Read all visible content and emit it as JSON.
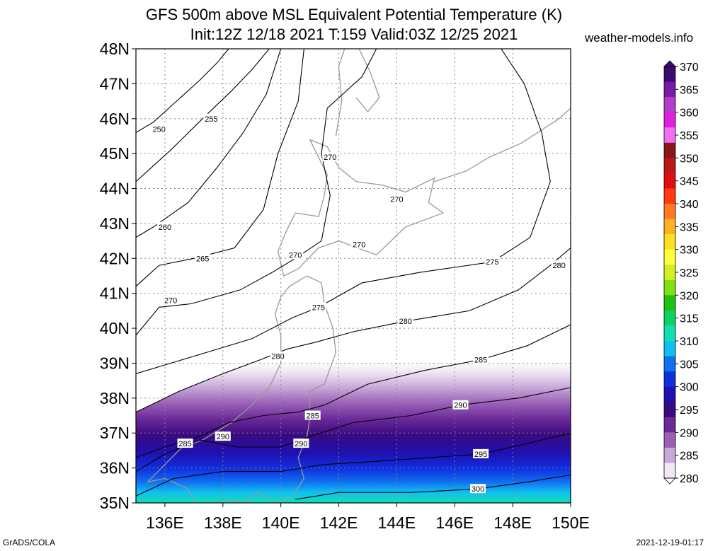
{
  "title_line1": "GFS 500m above MSL Equivalent Potential Temperature (K)",
  "title_line2": "Init:12Z 12/18 2021 T:159 Valid:03Z 12/25 2021",
  "source": "weather-models.info",
  "footer_left": "GrADS/COLA",
  "footer_right": "2021-12-19-01:17",
  "lat_labels": [
    "48N",
    "47N",
    "46N",
    "45N",
    "44N",
    "43N",
    "42N",
    "41N",
    "40N",
    "39N",
    "38N",
    "37N",
    "36N",
    "35N"
  ],
  "lon_labels": [
    "136E",
    "138E",
    "140E",
    "142E",
    "144E",
    "146E",
    "148E",
    "150E"
  ],
  "colorbar": {
    "labels": [
      "370",
      "365",
      "360",
      "355",
      "350",
      "345",
      "340",
      "335",
      "330",
      "325",
      "320",
      "315",
      "310",
      "305",
      "300",
      "295",
      "290",
      "285",
      "280"
    ],
    "colors": [
      "#3d0a6e",
      "#7a1aa8",
      "#b23dc8",
      "#e020e0",
      "#f070f0",
      "#8a1818",
      "#b81a1a",
      "#e01010",
      "#ff3a10",
      "#ff7a20",
      "#ffb020",
      "#ffe020",
      "#ffff40",
      "#d0f020",
      "#80e010",
      "#20c010",
      "#10d060",
      "#10e0b0",
      "#10c0f0",
      "#1070f0",
      "#1030e0",
      "#2010b0",
      "#3a0a80",
      "#6a2a98",
      "#9a60b8",
      "#c8a8d8",
      "#f0e8f4"
    ]
  },
  "contour_labels": [
    {
      "text": "250",
      "lon": 135.8,
      "lat": 45.7
    },
    {
      "text": "255",
      "lon": 137.6,
      "lat": 46.0
    },
    {
      "text": "270",
      "lon": 141.7,
      "lat": 44.9
    },
    {
      "text": "270",
      "lon": 144.0,
      "lat": 43.7
    },
    {
      "text": "260",
      "lon": 136.0,
      "lat": 42.9
    },
    {
      "text": "270",
      "lon": 140.5,
      "lat": 42.1
    },
    {
      "text": "270",
      "lon": 142.7,
      "lat": 42.4
    },
    {
      "text": "265",
      "lon": 137.3,
      "lat": 42.0
    },
    {
      "text": "275",
      "lon": 147.3,
      "lat": 41.9
    },
    {
      "text": "280",
      "lon": 149.6,
      "lat": 41.8
    },
    {
      "text": "270",
      "lon": 136.2,
      "lat": 40.8
    },
    {
      "text": "275",
      "lon": 141.3,
      "lat": 40.6
    },
    {
      "text": "280",
      "lon": 144.3,
      "lat": 40.2
    },
    {
      "text": "280",
      "lon": 139.9,
      "lat": 39.2
    },
    {
      "text": "285",
      "lon": 146.9,
      "lat": 39.1
    },
    {
      "text": "290",
      "lon": 146.2,
      "lat": 37.8
    },
    {
      "text": "285",
      "lon": 141.1,
      "lat": 37.5
    },
    {
      "text": "290",
      "lon": 138.0,
      "lat": 36.9
    },
    {
      "text": "285",
      "lon": 136.7,
      "lat": 36.7
    },
    {
      "text": "290",
      "lon": 140.7,
      "lat": 36.7
    },
    {
      "text": "295",
      "lon": 146.9,
      "lat": 36.4
    },
    {
      "text": "300",
      "lon": 146.8,
      "lat": 35.4
    }
  ],
  "contours": [
    {
      "value": "250",
      "points": [
        [
          135,
          45.6
        ],
        [
          135.6,
          45.9
        ],
        [
          136.4,
          46.5
        ],
        [
          137.2,
          47.1
        ],
        [
          137.8,
          47.6
        ],
        [
          138.2,
          48
        ]
      ]
    },
    {
      "value": "255",
      "points": [
        [
          135,
          44.2
        ],
        [
          136.2,
          45.1
        ],
        [
          137.3,
          46.0
        ],
        [
          138.3,
          46.8
        ],
        [
          139,
          47.4
        ],
        [
          139.6,
          48
        ]
      ]
    },
    {
      "value": "260",
      "points": [
        [
          135,
          42.6
        ],
        [
          135.6,
          42.9
        ],
        [
          136.8,
          43.6
        ],
        [
          137.8,
          44.6
        ],
        [
          138.7,
          45.6
        ],
        [
          139.5,
          46.7
        ],
        [
          140,
          48
        ]
      ]
    },
    {
      "value": "265",
      "points": [
        [
          135,
          41.2
        ],
        [
          135.8,
          41.8
        ],
        [
          137.0,
          42.0
        ],
        [
          138.4,
          42.3
        ],
        [
          139.4,
          43.4
        ],
        [
          139.9,
          45.0
        ],
        [
          140.6,
          46.5
        ],
        [
          140.8,
          48
        ]
      ]
    },
    {
      "value": "270",
      "points": [
        [
          135,
          39.8
        ],
        [
          135.8,
          40.6
        ],
        [
          136.9,
          40.7
        ],
        [
          138.6,
          41.1
        ],
        [
          139.7,
          41.6
        ],
        [
          140.5,
          42.0
        ],
        [
          141.4,
          42.5
        ],
        [
          141.7,
          43.8
        ],
        [
          141.4,
          45.0
        ],
        [
          141.6,
          46.3
        ],
        [
          142.8,
          47.2
        ],
        [
          143.3,
          48
        ]
      ]
    },
    {
      "value": "275",
      "points": [
        [
          135,
          38.7
        ],
        [
          137.0,
          39.2
        ],
        [
          139.0,
          39.7
        ],
        [
          140.4,
          40.3
        ],
        [
          141.3,
          40.6
        ],
        [
          142.8,
          41.3
        ],
        [
          144.8,
          41.6
        ],
        [
          147.3,
          41.9
        ],
        [
          148.6,
          42.6
        ],
        [
          149.3,
          44.2
        ],
        [
          149.0,
          45.6
        ],
        [
          148.4,
          47.0
        ],
        [
          147.6,
          48
        ]
      ]
    },
    {
      "value": "280",
      "points": [
        [
          135,
          37.6
        ],
        [
          136.5,
          38.2
        ],
        [
          138.0,
          38.7
        ],
        [
          139.3,
          39.1
        ],
        [
          140.2,
          39.4
        ],
        [
          141.2,
          39.6
        ],
        [
          142.5,
          39.9
        ],
        [
          144.3,
          40.2
        ],
        [
          146.5,
          40.5
        ],
        [
          148.2,
          41.1
        ],
        [
          149.3,
          41.8
        ],
        [
          150,
          42.3
        ]
      ]
    },
    {
      "value": "285",
      "points": [
        [
          135,
          36.3
        ],
        [
          136.0,
          36.6
        ],
        [
          137.2,
          36.9
        ],
        [
          138.2,
          37.3
        ],
        [
          139.4,
          37.5
        ],
        [
          140.6,
          37.6
        ],
        [
          141.5,
          37.8
        ],
        [
          143.0,
          38.4
        ],
        [
          145.0,
          38.8
        ],
        [
          146.9,
          39.1
        ],
        [
          148.5,
          39.5
        ],
        [
          150,
          40.1
        ]
      ]
    },
    {
      "value": "290",
      "points": [
        [
          135,
          35.9
        ],
        [
          136.0,
          36.4
        ],
        [
          137.2,
          36.8
        ],
        [
          138.5,
          36.6
        ],
        [
          140.0,
          36.6
        ],
        [
          141.0,
          36.9
        ],
        [
          142.5,
          37.3
        ],
        [
          144.5,
          37.5
        ],
        [
          146.2,
          37.8
        ],
        [
          148.2,
          38.0
        ],
        [
          150,
          38.3
        ]
      ]
    },
    {
      "value": "295",
      "points": [
        [
          135,
          35.2
        ],
        [
          136.3,
          35.7
        ],
        [
          138.0,
          35.9
        ],
        [
          140.0,
          35.9
        ],
        [
          141.5,
          36.1
        ],
        [
          143.5,
          36.2
        ],
        [
          146.9,
          36.4
        ],
        [
          148.5,
          36.7
        ],
        [
          150,
          37.0
        ]
      ]
    },
    {
      "value": "300",
      "points": [
        [
          140.5,
          35.1
        ],
        [
          142.0,
          35.3
        ],
        [
          144.5,
          35.3
        ],
        [
          146.8,
          35.4
        ],
        [
          148.5,
          35.6
        ],
        [
          150,
          35.8
        ]
      ]
    }
  ],
  "coastlines": [
    [
      [
        141.0,
        45.4
      ],
      [
        141.6,
        45.2
      ],
      [
        142.0,
        44.6
      ],
      [
        142.6,
        44.2
      ],
      [
        143.5,
        44.1
      ],
      [
        144.3,
        43.9
      ],
      [
        145.3,
        44.3
      ],
      [
        145.1,
        43.6
      ],
      [
        145.6,
        43.3
      ],
      [
        144.3,
        42.9
      ],
      [
        143.3,
        42.1
      ],
      [
        142.0,
        42.5
      ],
      [
        141.3,
        42.3
      ],
      [
        140.6,
        41.7
      ],
      [
        140.1,
        41.5
      ],
      [
        139.9,
        42.2
      ],
      [
        140.2,
        42.8
      ],
      [
        140.5,
        43.3
      ],
      [
        141.3,
        43.2
      ],
      [
        141.5,
        43.8
      ],
      [
        141.6,
        44.4
      ],
      [
        141.0,
        45.4
      ]
    ],
    [
      [
        140.9,
        41.5
      ],
      [
        141.4,
        41.3
      ],
      [
        141.5,
        40.7
      ],
      [
        141.8,
        40.0
      ],
      [
        141.9,
        39.3
      ],
      [
        141.5,
        38.4
      ],
      [
        141.0,
        38.2
      ],
      [
        141.0,
        37.4
      ],
      [
        140.9,
        36.9
      ],
      [
        140.6,
        36.3
      ],
      [
        140.8,
        35.7
      ],
      [
        140.4,
        35.2
      ],
      [
        139.8,
        35.0
      ],
      [
        139.2,
        35.3
      ],
      [
        138.7,
        35.0
      ],
      [
        138.2,
        35.1
      ],
      [
        137.1,
        34.9
      ],
      [
        136.8,
        35.4
      ],
      [
        136.0,
        35.7
      ],
      [
        135.4,
        35.6
      ],
      [
        136.6,
        36.6
      ],
      [
        137.3,
        36.8
      ],
      [
        138.3,
        37.3
      ],
      [
        139.0,
        37.8
      ],
      [
        139.6,
        38.3
      ],
      [
        140.0,
        39.0
      ],
      [
        140.0,
        39.8
      ],
      [
        139.8,
        40.4
      ],
      [
        140.0,
        40.9
      ],
      [
        140.3,
        41.2
      ],
      [
        140.9,
        41.5
      ]
    ],
    [
      [
        141.9,
        45.5
      ],
      [
        142.1,
        46.5
      ],
      [
        142.0,
        47.5
      ],
      [
        142.2,
        48
      ]
    ],
    [
      [
        142.7,
        48
      ],
      [
        143.1,
        47.3
      ],
      [
        143.4,
        46.6
      ],
      [
        143.0,
        46.2
      ],
      [
        142.6,
        46.6
      ]
    ],
    [
      [
        145.3,
        44.2
      ],
      [
        146.4,
        44.5
      ],
      [
        147.2,
        44.9
      ],
      [
        148.3,
        45.3
      ],
      [
        149.6,
        46.0
      ],
      [
        150,
        46.3
      ]
    ]
  ]
}
